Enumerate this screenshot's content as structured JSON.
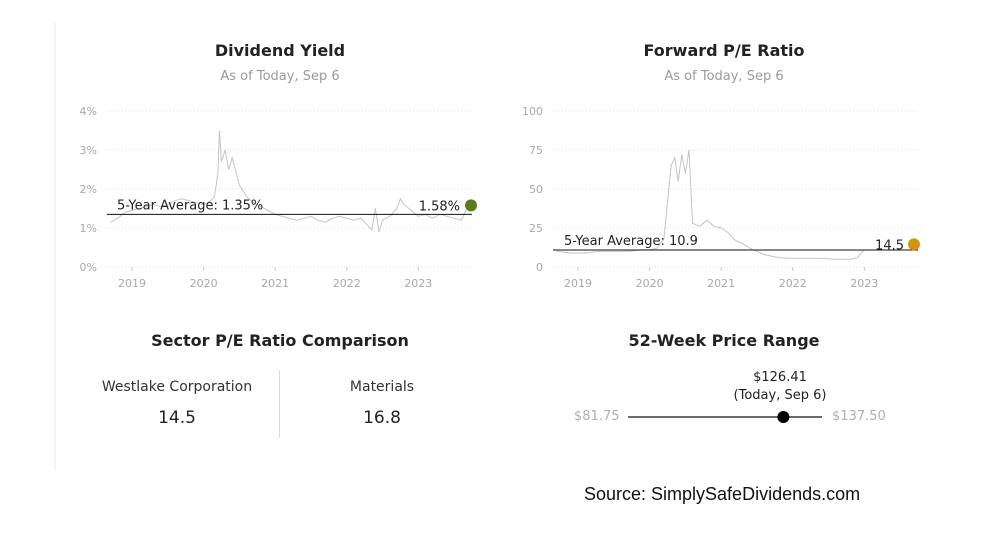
{
  "chart_data": [
    {
      "type": "line",
      "title": "Dividend Yield",
      "subtitle": "As of Today, Sep 6",
      "y_ticks": [
        "0%",
        "1%",
        "2%",
        "3%",
        "4%"
      ],
      "ylim": [
        0,
        4
      ],
      "x_ticks": [
        "2019",
        "2020",
        "2021",
        "2022",
        "2023"
      ],
      "xlim": [
        2018.65,
        2023.75
      ],
      "series": [
        {
          "x": [
            2018.7,
            2018.8,
            2018.9,
            2019.0,
            2019.1,
            2019.2,
            2019.3,
            2019.4,
            2019.5,
            2019.6,
            2019.7,
            2019.8,
            2019.9,
            2020.0,
            2020.1,
            2020.15,
            2020.2,
            2020.22,
            2020.25,
            2020.3,
            2020.35,
            2020.4,
            2020.5,
            2020.6,
            2020.7,
            2020.8,
            2020.9,
            2021.0,
            2021.1,
            2021.2,
            2021.3,
            2021.4,
            2021.5,
            2021.6,
            2021.7,
            2021.8,
            2021.9,
            2022.0,
            2022.1,
            2022.2,
            2022.3,
            2022.35,
            2022.4,
            2022.45,
            2022.5,
            2022.6,
            2022.7,
            2022.75,
            2022.8,
            2022.9,
            2023.0,
            2023.1,
            2023.2,
            2023.3,
            2023.4,
            2023.5,
            2023.6,
            2023.7
          ],
          "values": [
            1.15,
            1.25,
            1.4,
            1.45,
            1.5,
            1.55,
            1.6,
            1.55,
            1.6,
            1.7,
            1.75,
            1.7,
            1.65,
            1.6,
            1.7,
            1.8,
            2.4,
            3.5,
            2.7,
            3.0,
            2.5,
            2.8,
            2.1,
            1.8,
            1.65,
            1.55,
            1.45,
            1.35,
            1.3,
            1.25,
            1.2,
            1.25,
            1.3,
            1.2,
            1.15,
            1.25,
            1.3,
            1.25,
            1.2,
            1.25,
            1.05,
            0.95,
            1.5,
            0.9,
            1.2,
            1.3,
            1.5,
            1.75,
            1.6,
            1.45,
            1.3,
            1.35,
            1.25,
            1.35,
            1.3,
            1.25,
            1.2,
            1.58
          ]
        }
      ],
      "average": {
        "label": "5-Year Average: 1.35%",
        "value": 1.35
      },
      "current": {
        "label": "1.58%",
        "value": 1.58,
        "color": "#5a7d1a"
      }
    },
    {
      "type": "line",
      "title": "Forward P/E Ratio",
      "subtitle": "As of Today, Sep 6",
      "y_ticks": [
        "0",
        "25",
        "50",
        "75",
        "100"
      ],
      "ylim": [
        0,
        100
      ],
      "x_ticks": [
        "2019",
        "2020",
        "2021",
        "2022",
        "2023"
      ],
      "xlim": [
        2018.65,
        2023.75
      ],
      "series": [
        {
          "x": [
            2018.7,
            2018.9,
            2019.1,
            2019.3,
            2019.5,
            2019.7,
            2019.9,
            2020.0,
            2020.1,
            2020.2,
            2020.3,
            2020.35,
            2020.4,
            2020.45,
            2020.5,
            2020.55,
            2020.6,
            2020.7,
            2020.8,
            2020.9,
            2021.0,
            2021.1,
            2021.2,
            2021.3,
            2021.4,
            2021.6,
            2021.8,
            2022.0,
            2022.2,
            2022.4,
            2022.6,
            2022.8,
            2022.9,
            2023.0
          ],
          "values": [
            10,
            9,
            9,
            10,
            10,
            10,
            11,
            11,
            12,
            18,
            65,
            70,
            55,
            72,
            60,
            75,
            28,
            26,
            30,
            26,
            25,
            22,
            17,
            15,
            12,
            8,
            6,
            5.5,
            5.5,
            5.5,
            5,
            5,
            6,
            11
          ]
        }
      ],
      "average": {
        "label": "5-Year Average: 10.9",
        "value": 10.9
      },
      "current": {
        "label": "14.5",
        "value": 14.5,
        "color": "#d4920f"
      }
    }
  ],
  "sector": {
    "title": "Sector P/E Ratio Comparison",
    "company_label": "Westlake Corporation",
    "company_value": "14.5",
    "sector_label": "Materials",
    "sector_value": "16.8"
  },
  "range": {
    "title": "52-Week Price Range",
    "low": "$81.75",
    "high": "$137.50",
    "current_price": "$126.41",
    "current_note": "(Today, Sep 6)",
    "low_value": 81.75,
    "high_value": 137.5,
    "current_value": 126.41
  },
  "source": "Source: SimplySafeDividends.com"
}
